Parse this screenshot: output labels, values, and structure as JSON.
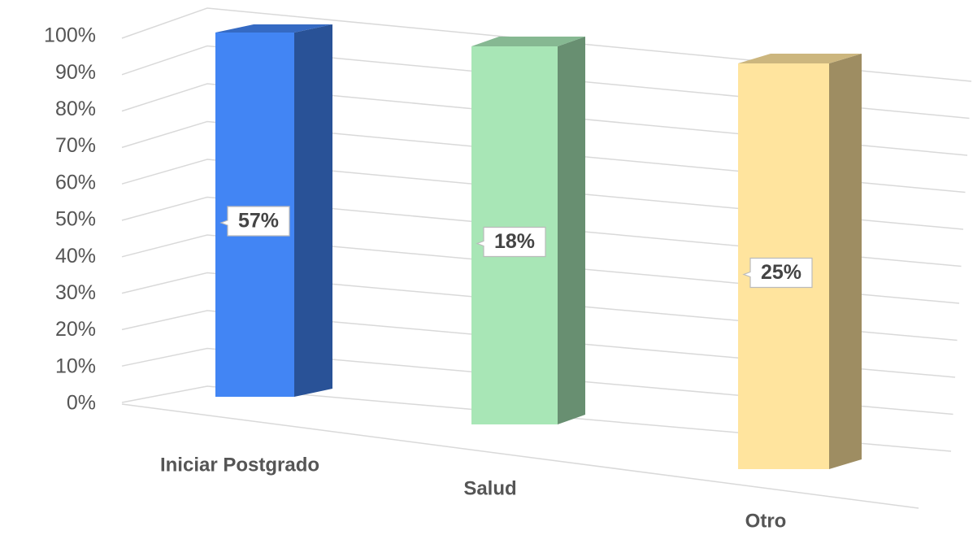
{
  "chart_data": {
    "type": "bar",
    "stacked_100": true,
    "categories": [
      "Iniciar Postgrado",
      "Salud",
      "Otro"
    ],
    "values": [
      57,
      18,
      25
    ],
    "value_labels": [
      "57%",
      "18%",
      "25%"
    ],
    "colors": [
      "#4285f4",
      "#a8e6b6",
      "#ffe49e"
    ],
    "ylim": [
      0,
      100
    ],
    "yticks": [
      {
        "value": 0,
        "label": "0%"
      },
      {
        "value": 10,
        "label": "10%"
      },
      {
        "value": 20,
        "label": "20%"
      },
      {
        "value": 30,
        "label": "30%"
      },
      {
        "value": 40,
        "label": "40%"
      },
      {
        "value": 50,
        "label": "50%"
      },
      {
        "value": 60,
        "label": "60%"
      },
      {
        "value": 70,
        "label": "70%"
      },
      {
        "value": 80,
        "label": "80%"
      },
      {
        "value": 90,
        "label": "90%"
      },
      {
        "value": 100,
        "label": "100%"
      }
    ],
    "grid": true
  }
}
